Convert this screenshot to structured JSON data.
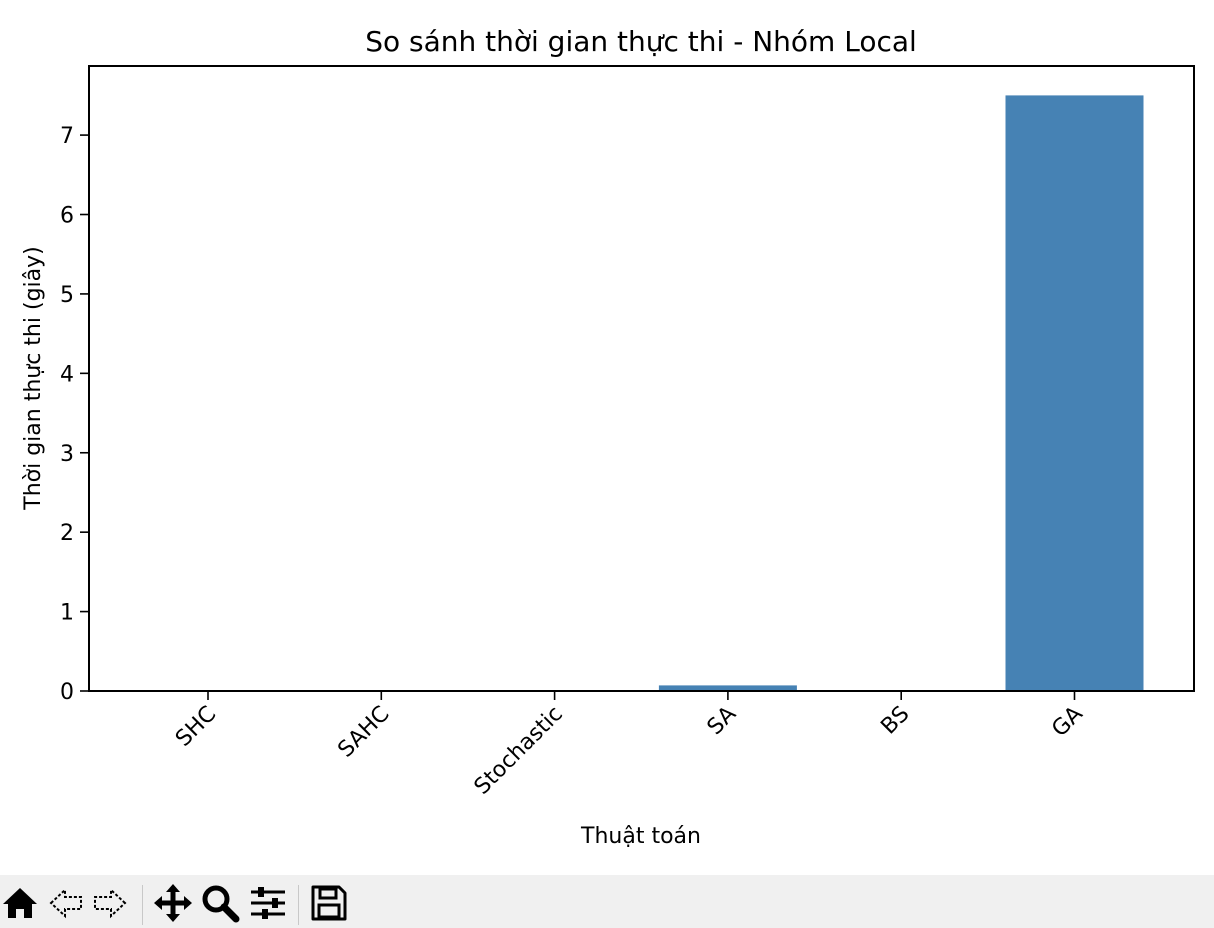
{
  "chart_data": {
    "type": "bar",
    "title": "So sánh thời gian thực thi - Nhóm Local",
    "xlabel": "Thuật toán",
    "ylabel": "Thời gian thực thi (giây)",
    "categories": [
      "SHC",
      "SAHC",
      "Stochastic",
      "SA",
      "BS",
      "GA"
    ],
    "values": [
      0.0,
      0.0,
      0.0,
      0.07,
      0.0,
      7.5
    ],
    "ylim": [
      0,
      7.87
    ],
    "yticks": [
      0,
      1,
      2,
      3,
      4,
      5,
      6,
      7
    ],
    "bar_color": "#4682b4",
    "grid": false
  },
  "toolbar": {
    "buttons": [
      "home-icon",
      "back-icon",
      "forward-icon",
      "pan-icon",
      "zoom-icon",
      "configure-subplots-icon",
      "save-icon"
    ]
  }
}
